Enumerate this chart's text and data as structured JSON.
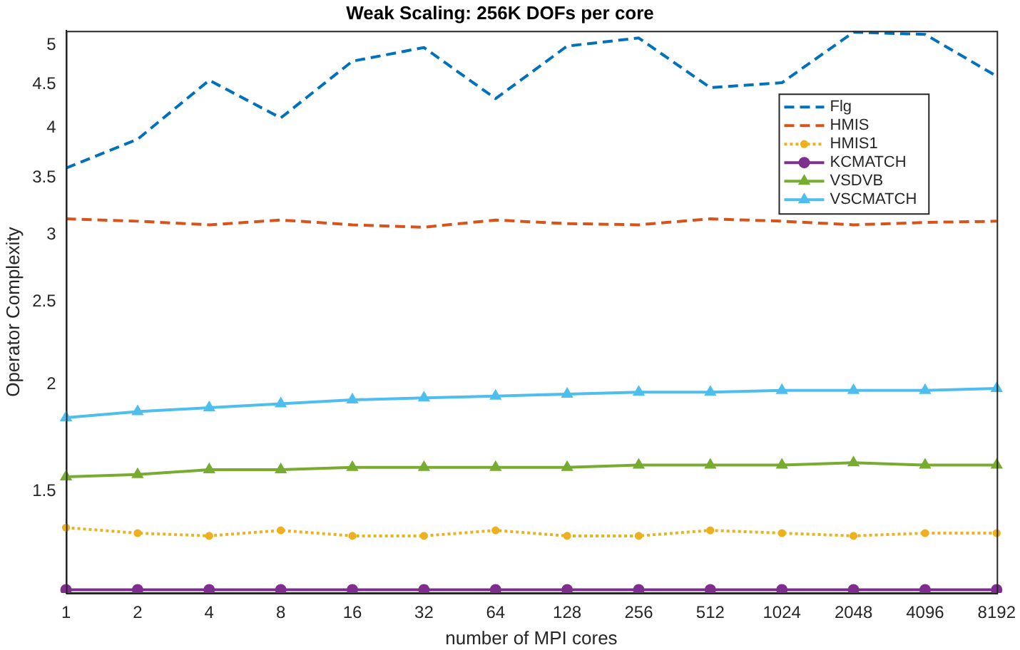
{
  "chart_data": {
    "type": "line",
    "title": "Weak Scaling: 256K DOFs per core",
    "xlabel": "number of MPI cores",
    "ylabel": "Operator Complexity",
    "categories": [
      "1",
      "2",
      "4",
      "8",
      "16",
      "32",
      "64",
      "128",
      "256",
      "512",
      "1024",
      "2048",
      "4096",
      "8192"
    ],
    "log": "y",
    "ylim": [
      1.14,
      5.2
    ],
    "yticks": [
      1.5,
      2,
      2.5,
      3,
      3.5,
      4,
      4.5,
      5
    ],
    "grid": false,
    "legend": "top right",
    "series": [
      {
        "name": "Flg",
        "color": "#0072bd",
        "line_style": "dashed",
        "marker": "none",
        "values": [
          3.59,
          3.88,
          4.55,
          4.11,
          4.79,
          4.97,
          4.33,
          4.99,
          5.1,
          4.46,
          4.52,
          5.18,
          5.15,
          4.6
        ]
      },
      {
        "name": "HMIS",
        "color": "#d95319",
        "line_style": "dashed",
        "marker": "none",
        "values": [
          3.13,
          3.11,
          3.08,
          3.12,
          3.08,
          3.06,
          3.12,
          3.09,
          3.08,
          3.13,
          3.11,
          3.08,
          3.1,
          3.11
        ]
      },
      {
        "name": "HMIS1",
        "color": "#edb120",
        "line_style": "dotted",
        "marker": "circle",
        "values": [
          1.36,
          1.34,
          1.33,
          1.35,
          1.33,
          1.33,
          1.35,
          1.33,
          1.33,
          1.35,
          1.34,
          1.33,
          1.34,
          1.34
        ]
      },
      {
        "name": "KCMATCH",
        "color": "#7e2f8e",
        "line_style": "solid",
        "marker": "circle",
        "values": [
          1.15,
          1.15,
          1.15,
          1.15,
          1.15,
          1.15,
          1.15,
          1.15,
          1.15,
          1.15,
          1.15,
          1.15,
          1.15,
          1.15
        ]
      },
      {
        "name": "VSDVB",
        "color": "#77ac30",
        "line_style": "solid",
        "marker": "triangle",
        "values": [
          1.56,
          1.57,
          1.59,
          1.59,
          1.6,
          1.6,
          1.6,
          1.6,
          1.61,
          1.61,
          1.61,
          1.62,
          1.61,
          1.61
        ]
      },
      {
        "name": "VSCMATCH",
        "color": "#4dbeee",
        "line_style": "solid",
        "marker": "triangle",
        "values": [
          1.83,
          1.86,
          1.88,
          1.9,
          1.92,
          1.93,
          1.94,
          1.95,
          1.96,
          1.96,
          1.97,
          1.97,
          1.97,
          1.98
        ]
      }
    ]
  }
}
